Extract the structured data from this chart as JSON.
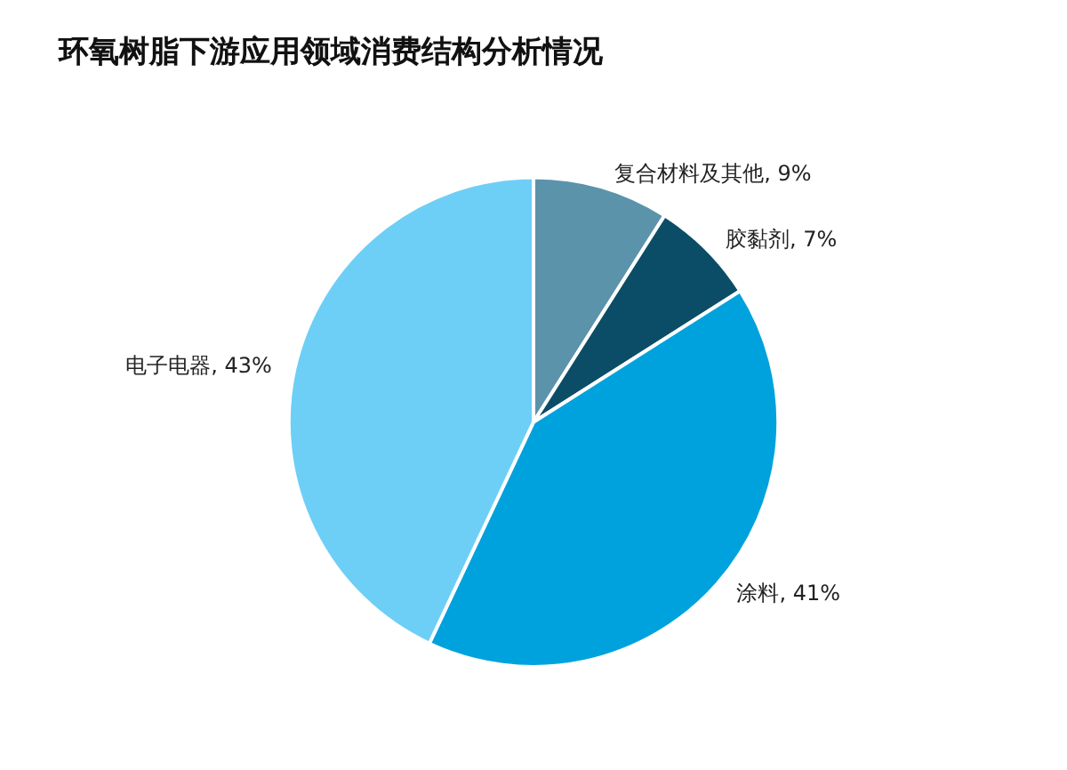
{
  "chart_data": {
    "type": "pie",
    "title": "环氧树脂下游应用领域消费结构分析情况",
    "categories": [
      "复合材料及其他",
      "胶黏剂",
      "涂料",
      "电子电器"
    ],
    "values": [
      9,
      7,
      41,
      43
    ],
    "colors": [
      "#5b93ab",
      "#0b4d66",
      "#00a2dd",
      "#6dcff6"
    ],
    "value_labels": [
      "9%",
      "7%",
      "41%",
      "43%"
    ],
    "legend": false
  }
}
